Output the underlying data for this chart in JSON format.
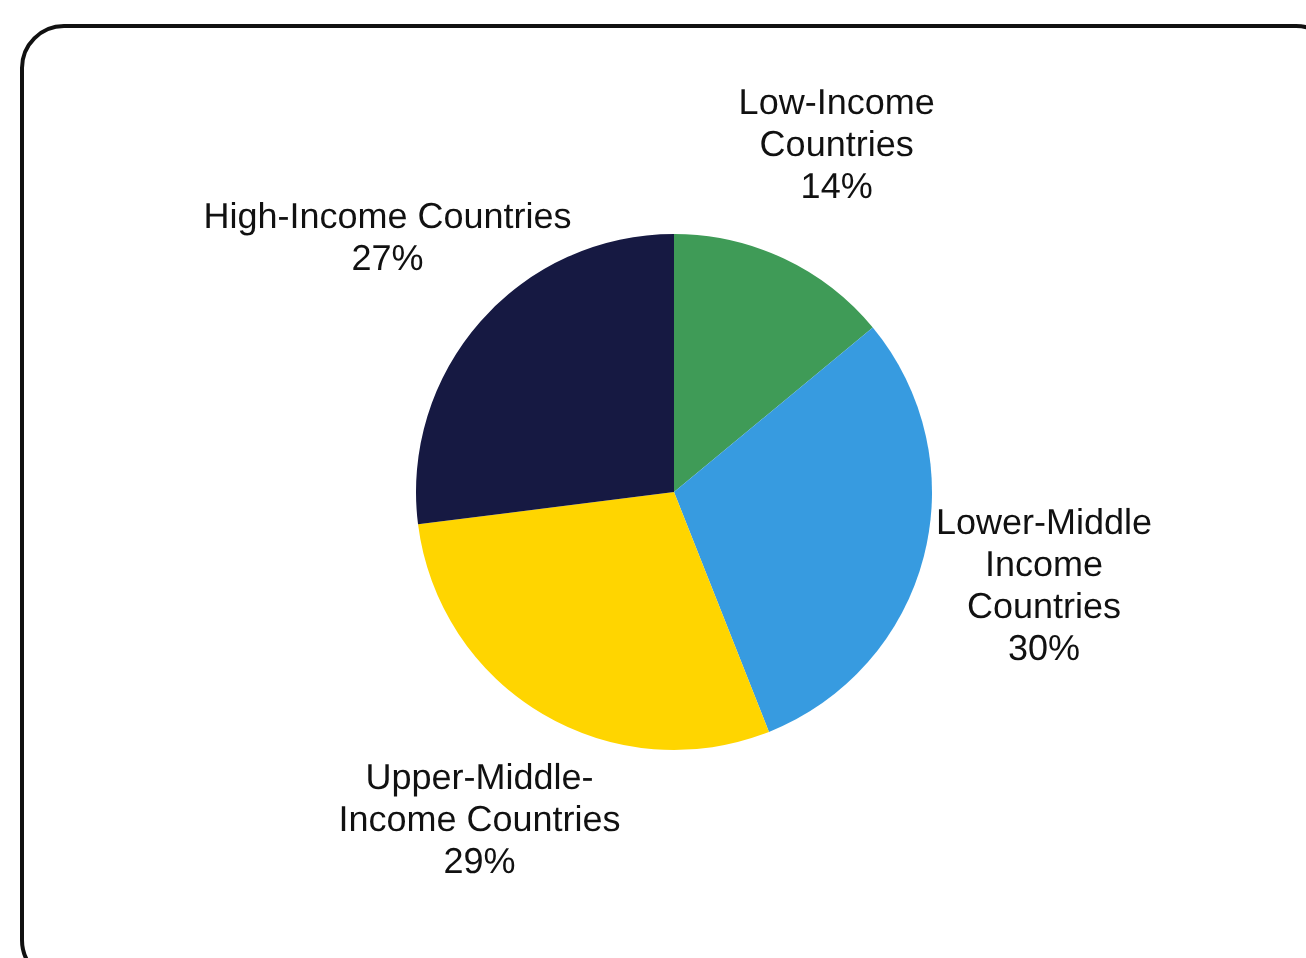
{
  "chart_data": {
    "type": "pie",
    "categories": [
      "Low-Income Countries",
      "Lower-Middle Income Countries",
      "Upper-Middle-Income Countries",
      "High-Income Countries"
    ],
    "values": [
      14,
      30,
      29,
      27
    ],
    "value_labels": [
      "14%",
      "30%",
      "29%",
      "27%"
    ],
    "colors": [
      "#3f9b57",
      "#379be0",
      "#ffd500",
      "#161942"
    ],
    "legend": false
  }
}
